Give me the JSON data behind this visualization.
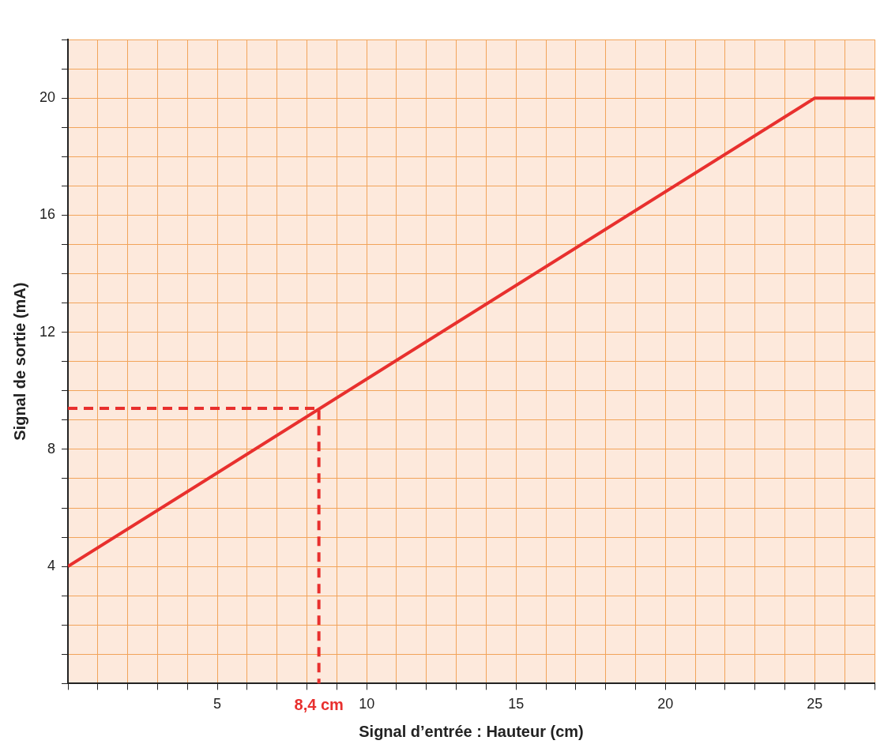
{
  "chart_data": {
    "type": "line",
    "xlabel": "Signal d’entrée : Hauteur (cm)",
    "ylabel": "Signal de sortie (mA)",
    "series": [
      {
        "color": "#e8302e",
        "x": [
          0,
          25,
          27
        ],
        "values": [
          4,
          20,
          20
        ],
        "line_style": "solid"
      },
      {
        "color": "#e8302e",
        "x": [
          0,
          8.4,
          8.4
        ],
        "values": [
          9.4,
          9.4,
          0
        ],
        "line_style": "dashed"
      }
    ],
    "annotations": [
      {
        "text": "8,4 cm",
        "x": 8.4,
        "y": 0
      }
    ],
    "xlim": [
      0,
      27
    ],
    "ylim": [
      0,
      22
    ],
    "xticks": [
      {
        "value": 0,
        "label": null
      },
      {
        "value": 1,
        "label": null
      },
      {
        "value": 2,
        "label": null
      },
      {
        "value": 3,
        "label": null
      },
      {
        "value": 4,
        "label": null
      },
      5,
      {
        "value": 6,
        "label": null
      },
      {
        "value": 7,
        "label": null
      },
      {
        "value": 8,
        "label": null
      },
      {
        "value": 9,
        "label": null
      },
      10,
      {
        "value": 11,
        "label": null
      },
      {
        "value": 12,
        "label": null
      },
      {
        "value": 13,
        "label": null
      },
      {
        "value": 14,
        "label": null
      },
      15,
      {
        "value": 16,
        "label": null
      },
      {
        "value": 17,
        "label": null
      },
      {
        "value": 18,
        "label": null
      },
      {
        "value": 19,
        "label": null
      },
      20,
      {
        "value": 21,
        "label": null
      },
      {
        "value": 22,
        "label": null
      },
      {
        "value": 23,
        "label": null
      },
      {
        "value": 24,
        "label": null
      },
      25,
      {
        "value": 26,
        "label": null
      },
      {
        "value": 27,
        "label": null
      }
    ],
    "yticks": [
      {
        "value": 0,
        "label": null
      },
      {
        "value": 1,
        "label": null
      },
      {
        "value": 2,
        "label": null
      },
      {
        "value": 3,
        "label": null
      },
      4,
      {
        "value": 5,
        "label": null
      },
      {
        "value": 6,
        "label": null
      },
      {
        "value": 7,
        "label": null
      },
      8,
      {
        "value": 9,
        "label": null
      },
      {
        "value": 10,
        "label": null
      },
      {
        "value": 11,
        "label": null
      },
      12,
      {
        "value": 13,
        "label": null
      },
      {
        "value": 14,
        "label": null
      },
      {
        "value": 15,
        "label": null
      },
      16,
      {
        "value": 17,
        "label": null
      },
      {
        "value": 18,
        "label": null
      },
      {
        "value": 19,
        "label": null
      },
      20,
      {
        "value": 21,
        "label": null
      },
      {
        "value": 22,
        "label": null
      }
    ],
    "grid": true,
    "legend": false,
    "marker": "none"
  }
}
